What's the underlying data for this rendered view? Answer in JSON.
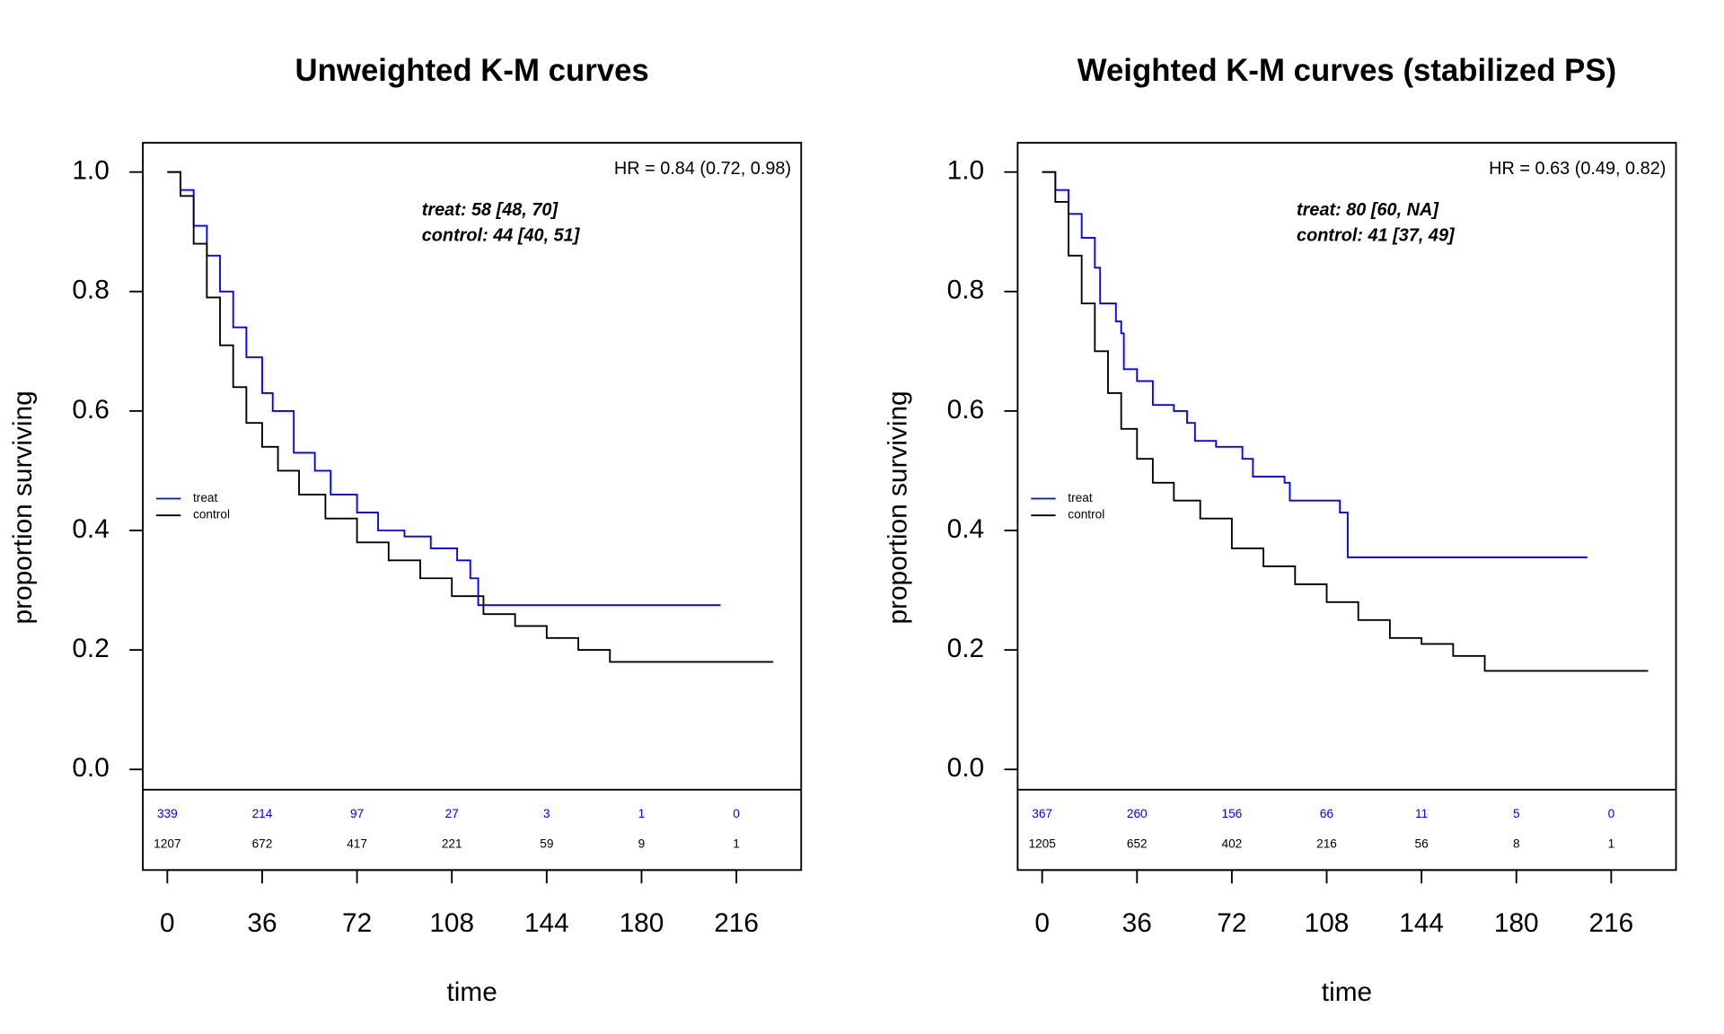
{
  "chart_data": [
    {
      "type": "line",
      "step": "post",
      "title": "Unweighted K-M curves",
      "xlabel": "time",
      "ylabel": "proportion surviving",
      "annotations": [
        "HR = 0.84 (0.72, 0.98)"
      ],
      "medians": [
        "treat: 58 [48, 70]",
        "control: 44 [40, 51]"
      ],
      "xlim": [
        -9.3,
        240.6
      ],
      "ylim": [
        -0.034,
        1.049
      ],
      "xticks": [
        0,
        36,
        72,
        108,
        144,
        180,
        216
      ],
      "yticks": [
        {
          "value": 0,
          "label": "0.0"
        },
        {
          "value": 0.2,
          "label": "0.2"
        },
        {
          "value": 0.4,
          "label": "0.4"
        },
        {
          "value": 0.6,
          "label": "0.6"
        },
        {
          "value": 0.8,
          "label": "0.8"
        },
        {
          "value": 1,
          "label": "1.0"
        }
      ],
      "legend": "left",
      "series": [
        {
          "name": "treat",
          "color": "#0000ff",
          "x": [
            0,
            5,
            10,
            15,
            20,
            25,
            30,
            36,
            40,
            48,
            56,
            62,
            72,
            80,
            90,
            100,
            110,
            115,
            118,
            210
          ],
          "values": [
            1,
            0.97,
            0.91,
            0.86,
            0.8,
            0.74,
            0.69,
            0.63,
            0.6,
            0.53,
            0.5,
            0.46,
            0.43,
            0.4,
            0.39,
            0.37,
            0.35,
            0.32,
            0.275,
            0.275
          ]
        },
        {
          "name": "control",
          "color": "#000000",
          "x": [
            0,
            5,
            10,
            15,
            20,
            25,
            30,
            36,
            42,
            50,
            60,
            72,
            84,
            96,
            108,
            120,
            132,
            144,
            156,
            168,
            230
          ],
          "values": [
            1,
            0.96,
            0.88,
            0.79,
            0.71,
            0.64,
            0.58,
            0.54,
            0.5,
            0.46,
            0.42,
            0.38,
            0.35,
            0.32,
            0.29,
            0.26,
            0.24,
            0.22,
            0.2,
            0.18,
            0.18
          ]
        }
      ],
      "risk_table": {
        "x": [
          0,
          36,
          72,
          108,
          144,
          180,
          216
        ],
        "rows": [
          {
            "color": "#0000ff",
            "values": [
              339,
              214,
              97,
              27,
              3,
              1,
              0
            ]
          },
          {
            "color": "#000000",
            "values": [
              1207,
              672,
              417,
              221,
              59,
              9,
              1
            ]
          }
        ]
      }
    },
    {
      "type": "line",
      "step": "post",
      "title": "Weighted K-M curves (stabilized PS)",
      "xlabel": "time",
      "ylabel": "proportion surviving",
      "annotations": [
        "HR = 0.63 (0.49, 0.82)"
      ],
      "medians": [
        "treat: 80 [60, NA]",
        "control: 41 [37, 49]"
      ],
      "xlim": [
        -9.3,
        240.6
      ],
      "ylim": [
        -0.034,
        1.049
      ],
      "xticks": [
        0,
        36,
        72,
        108,
        144,
        180,
        216
      ],
      "yticks": [
        {
          "value": 0,
          "label": "0.0"
        },
        {
          "value": 0.2,
          "label": "0.2"
        },
        {
          "value": 0.4,
          "label": "0.4"
        },
        {
          "value": 0.6,
          "label": "0.6"
        },
        {
          "value": 0.8,
          "label": "0.8"
        },
        {
          "value": 1,
          "label": "1.0"
        }
      ],
      "legend": "left",
      "series": [
        {
          "name": "treat",
          "color": "#0000ff",
          "x": [
            0,
            5,
            10,
            15,
            20,
            22,
            28,
            30,
            31,
            36,
            42,
            50,
            55,
            58,
            66,
            76,
            80,
            92,
            94,
            110,
            113,
            116,
            207
          ],
          "values": [
            1,
            0.97,
            0.93,
            0.89,
            0.84,
            0.78,
            0.75,
            0.73,
            0.67,
            0.65,
            0.61,
            0.6,
            0.58,
            0.55,
            0.54,
            0.52,
            0.49,
            0.48,
            0.45,
            0.45,
            0.43,
            0.355,
            0.355
          ]
        },
        {
          "name": "control",
          "color": "#000000",
          "x": [
            0,
            5,
            10,
            15,
            20,
            25,
            30,
            36,
            42,
            50,
            60,
            72,
            84,
            96,
            108,
            120,
            132,
            144,
            156,
            168,
            230
          ],
          "values": [
            1,
            0.95,
            0.86,
            0.78,
            0.7,
            0.63,
            0.57,
            0.52,
            0.48,
            0.45,
            0.42,
            0.37,
            0.34,
            0.31,
            0.28,
            0.25,
            0.22,
            0.21,
            0.19,
            0.165,
            0.165
          ]
        }
      ],
      "risk_table": {
        "x": [
          0,
          36,
          72,
          108,
          144,
          180,
          216
        ],
        "rows": [
          {
            "color": "#0000ff",
            "values": [
              367,
              260,
              156,
              66,
              11,
              5,
              0
            ]
          },
          {
            "color": "#000000",
            "values": [
              1205,
              652,
              402,
              216,
              56,
              8,
              1
            ]
          }
        ]
      }
    }
  ]
}
